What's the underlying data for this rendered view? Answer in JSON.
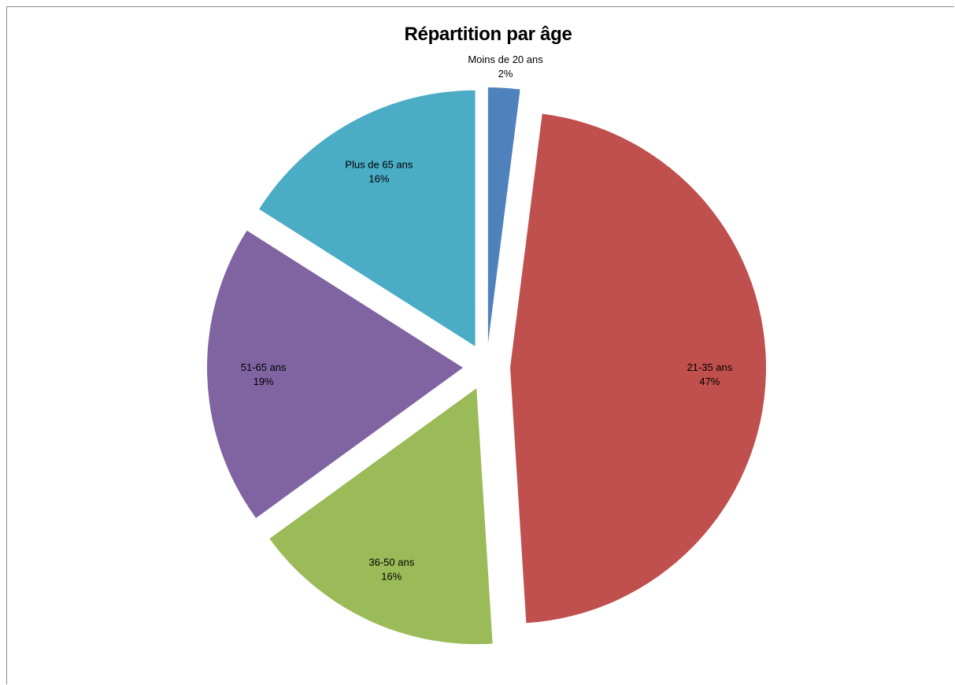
{
  "chart_data": {
    "type": "pie",
    "title": "Répartition par âge",
    "exploded": true,
    "slices": [
      {
        "label": "Moins de 20 ans",
        "value": 2,
        "display": "2%",
        "color": "#4F81BD"
      },
      {
        "label": "21-35 ans",
        "value": 47,
        "display": "47%",
        "color": "#C0504D"
      },
      {
        "label": "36-50 ans",
        "value": 16,
        "display": "16%",
        "color": "#9BBB59"
      },
      {
        "label": "51-65 ans",
        "value": 19,
        "display": "19%",
        "color": "#8064A2"
      },
      {
        "label": "Plus de 65 ans",
        "value": 16,
        "display": "16%",
        "color": "#4BACC6"
      }
    ],
    "legend": "none"
  }
}
